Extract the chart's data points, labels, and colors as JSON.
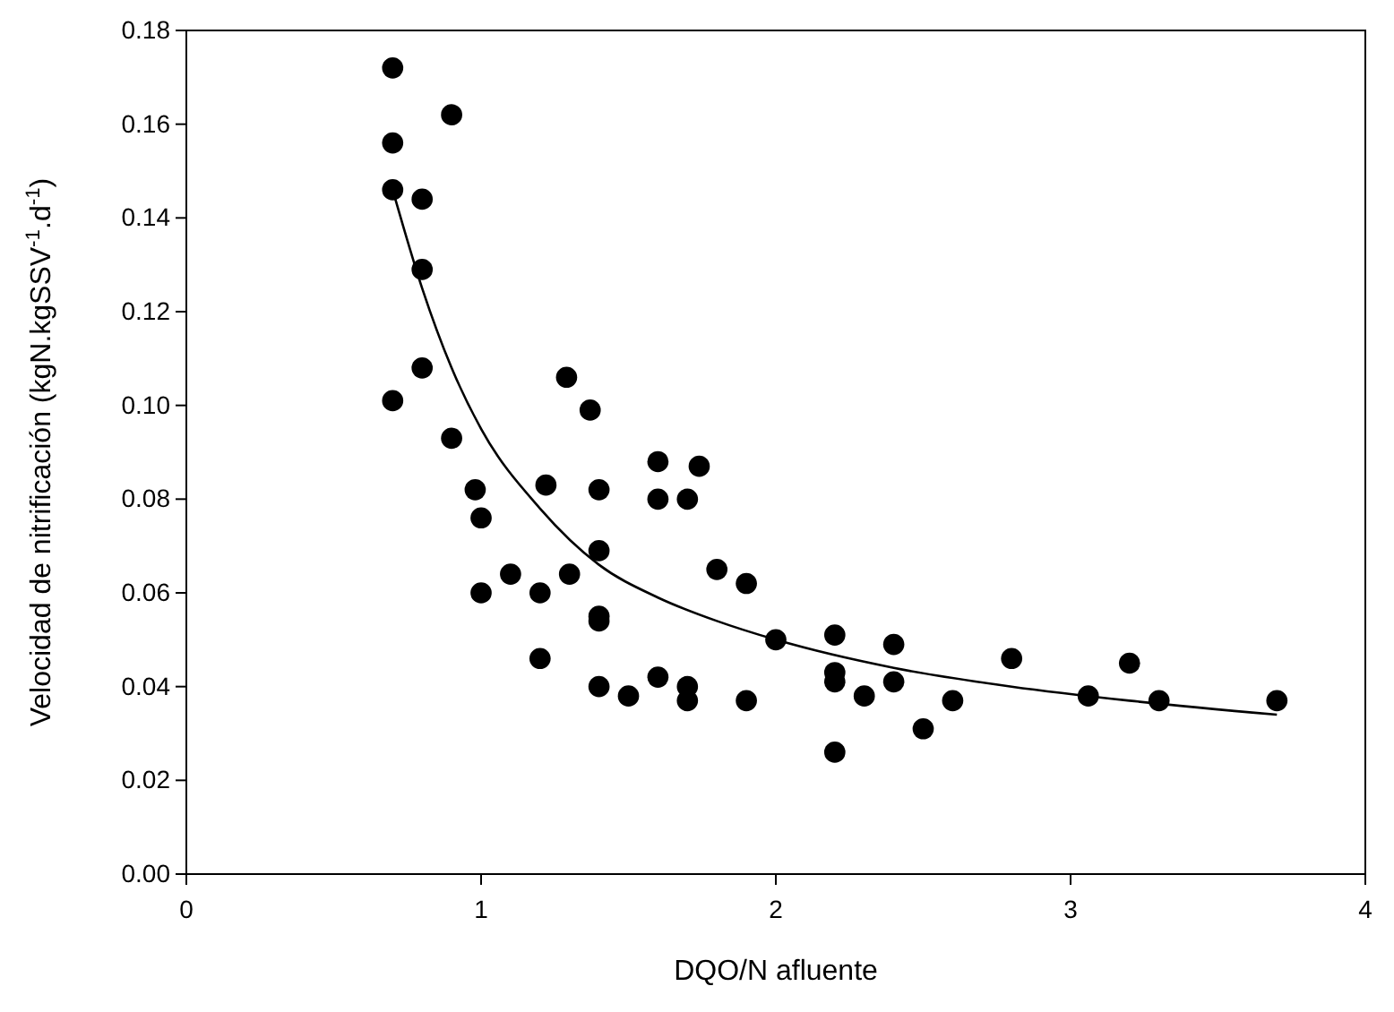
{
  "chart_data": {
    "type": "scatter",
    "xlabel": "DQO/N afluente",
    "ylabel": "Velocidad de nitrificación (kgN.kgSSV$^{-1}$.d$^{-1}$)",
    "xlim": [
      0,
      4
    ],
    "ylim": [
      0,
      0.18
    ],
    "xticks": [
      0,
      1,
      2,
      3,
      4
    ],
    "yticks": [
      {
        "value": 0,
        "label": "0.00"
      },
      {
        "value": 0.02,
        "label": "0.02"
      },
      {
        "value": 0.04,
        "label": "0.04"
      },
      {
        "value": 0.06,
        "label": "0.06"
      },
      {
        "value": 0.08,
        "label": "0.08"
      },
      {
        "value": 0.1,
        "label": "0.10"
      },
      {
        "value": 0.12,
        "label": "0.12"
      },
      {
        "value": 0.14,
        "label": "0.14"
      },
      {
        "value": 0.16,
        "label": "0.16"
      },
      {
        "value": 0.18,
        "label": "0.18"
      }
    ],
    "grid": false,
    "series": [
      {
        "color": "#000000",
        "marker": "circle",
        "x": [
          0.7,
          0.7,
          0.7,
          0.7,
          0.8,
          0.8,
          0.8,
          0.9,
          0.9,
          0.98,
          1.0,
          1.0,
          1.1,
          1.2,
          1.2,
          1.22,
          1.29,
          1.3,
          1.37,
          1.4,
          1.4,
          1.4,
          1.4,
          1.4,
          1.5,
          1.6,
          1.6,
          1.6,
          1.7,
          1.7,
          1.7,
          1.74,
          1.8,
          1.9,
          1.9,
          2.0,
          2.2,
          2.2,
          2.2,
          2.2,
          2.3,
          2.4,
          2.4,
          2.5,
          2.6,
          2.8,
          3.06,
          3.2,
          3.3,
          3.7
        ],
        "values": [
          0.172,
          0.156,
          0.146,
          0.101,
          0.144,
          0.129,
          0.108,
          0.162,
          0.093,
          0.082,
          0.076,
          0.06,
          0.064,
          0.06,
          0.046,
          0.083,
          0.106,
          0.064,
          0.099,
          0.082,
          0.069,
          0.055,
          0.054,
          0.04,
          0.038,
          0.088,
          0.08,
          0.042,
          0.08,
          0.04,
          0.037,
          0.087,
          0.065,
          0.062,
          0.037,
          0.05,
          0.051,
          0.043,
          0.041,
          0.026,
          0.038,
          0.049,
          0.041,
          0.031,
          0.037,
          0.046,
          0.038,
          0.045,
          0.037,
          0.037
        ]
      },
      {
        "type": "line",
        "color": "#000000",
        "line_style": "solid",
        "marker": "none",
        "x": [
          0.7,
          0.8,
          0.9,
          1.0,
          1.2,
          1.4,
          1.6,
          1.8,
          2.0,
          2.4,
          2.8,
          3.2,
          3.7
        ],
        "values": [
          0.146,
          0.125,
          0.108,
          0.095,
          0.078,
          0.066,
          0.059,
          0.054,
          0.05,
          0.044,
          0.04,
          0.037,
          0.034
        ]
      }
    ]
  }
}
